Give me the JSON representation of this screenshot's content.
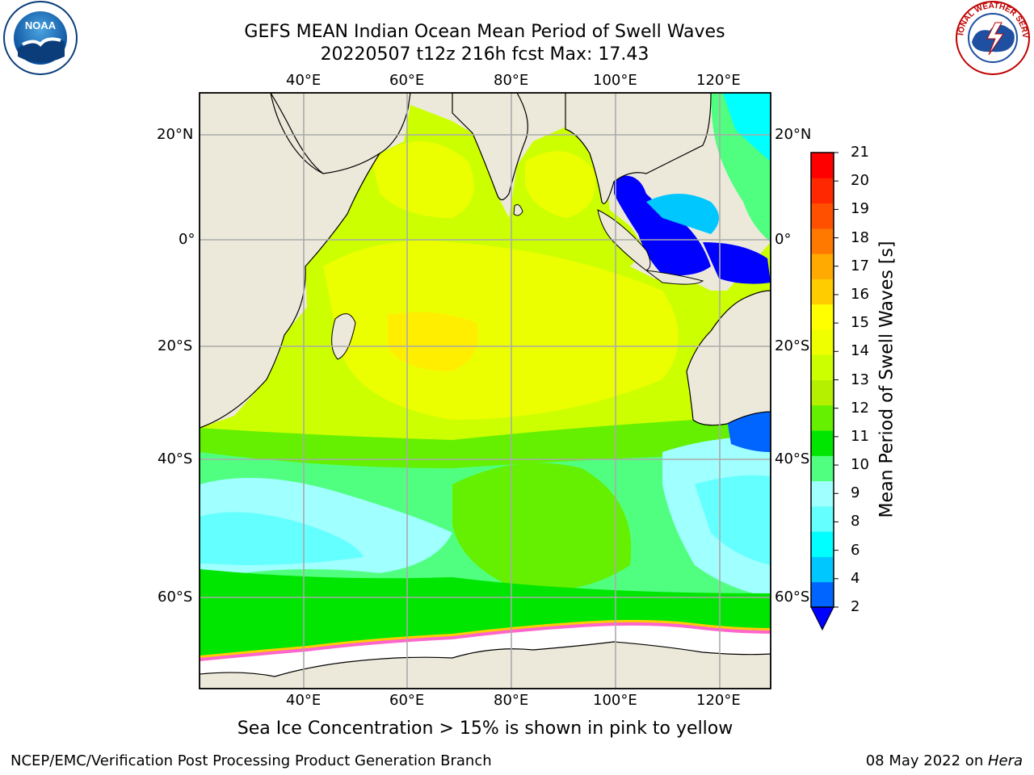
{
  "title_line1": "GEFS MEAN Indian Ocean Mean Period of Swell Waves",
  "title_line2": "20220507 t12z 216h fcst   Max: 17.43",
  "subtitle": "Sea Ice Concentration > 15% is shown in pink to yellow",
  "footer_left": "NCEP/EMC/Verification Post Processing Product Generation Branch",
  "footer_date": "08 May 2022 on ",
  "footer_host": "Hera",
  "logos": {
    "noaa": "NOAA",
    "nws": "NATIONAL WEATHER SERVICE"
  },
  "map": {
    "lon_labels": [
      "40°E",
      "60°E",
      "80°E",
      "100°E",
      "120°E"
    ],
    "lat_labels": [
      "20°N",
      "0°",
      "20°S",
      "40°S",
      "60°S"
    ],
    "colors": {
      "land": "#ede9da",
      "ocean": "#ccff00",
      "ice": "#ffffff",
      "grid": "#aaaaaa"
    }
  },
  "colorbar": {
    "title": "Mean Period of Swell Waves [s]",
    "ticks": [
      "2",
      "4",
      "6",
      "8",
      "9",
      "10",
      "11",
      "12",
      "13",
      "14",
      "15",
      "16",
      "17",
      "18",
      "19",
      "20",
      "21"
    ],
    "colors": [
      "#0064ff",
      "#00c8ff",
      "#00ffff",
      "#64ffff",
      "#a0ffff",
      "#50ff80",
      "#00e600",
      "#64f000",
      "#b4f000",
      "#ccff00",
      "#f0ff00",
      "#ffff00",
      "#ffcc00",
      "#ffaa00",
      "#ff7800",
      "#ff5000",
      "#ff2800",
      "#ff0000"
    ],
    "under_color": "#0000ff"
  }
}
